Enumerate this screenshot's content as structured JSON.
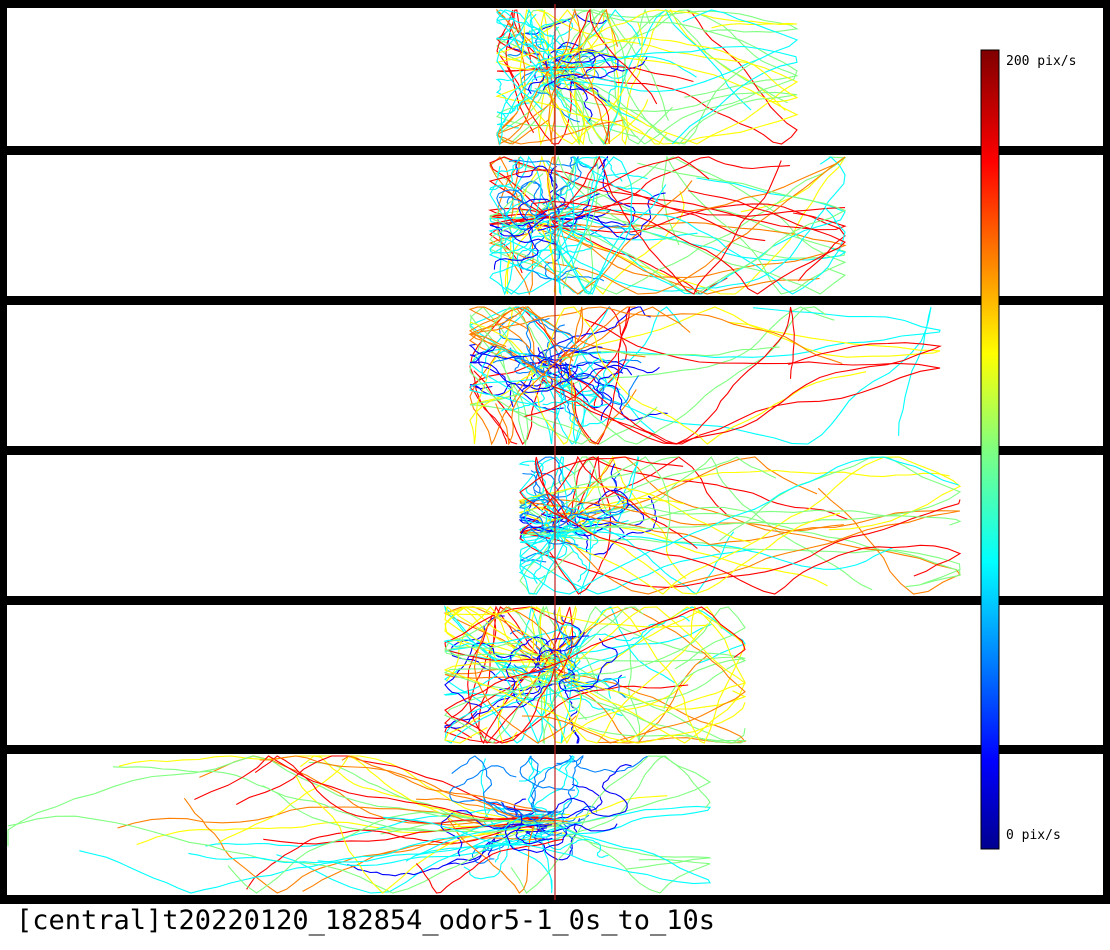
{
  "caption": "[central]t20220120_182854_odor5-1_0s_to_10s",
  "colorbar": {
    "max_label": "200 pix/s",
    "min_label": "0 pix/s",
    "colormap": "jet",
    "colors": [
      "#00008f",
      "#0000ff",
      "#0080ff",
      "#00ffff",
      "#80ff80",
      "#ffff00",
      "#ff8000",
      "#ff0000",
      "#800000"
    ]
  },
  "lanes": [
    {
      "name": "lane-1"
    },
    {
      "name": "lane-2"
    },
    {
      "name": "lane-3"
    },
    {
      "name": "lane-4"
    },
    {
      "name": "lane-5"
    },
    {
      "name": "lane-6"
    }
  ],
  "colors": {
    "lane_border": "#000000",
    "midline": "#c02020",
    "background": "#ffffff"
  }
}
